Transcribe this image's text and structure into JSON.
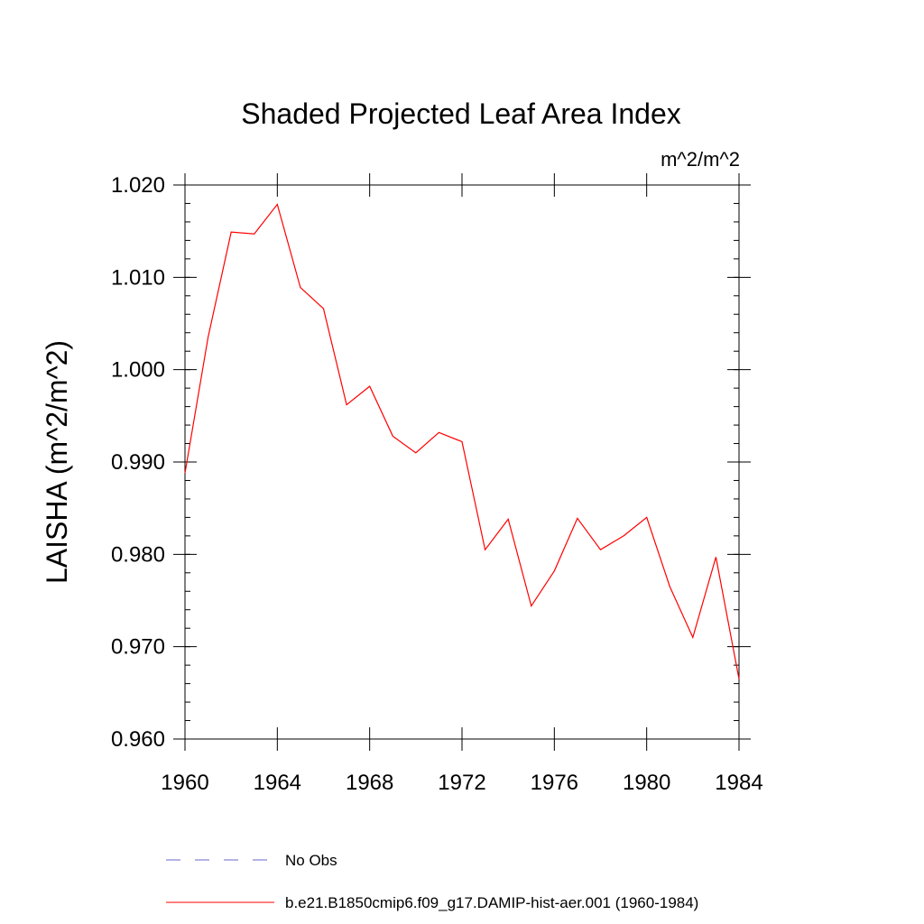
{
  "chart_data": {
    "type": "line",
    "title": "Shaded Projected Leaf Area Index",
    "units": "m^2/m^2",
    "ylabel": "LAISHA  (m^2/m^2)",
    "xlabel": "",
    "xlim": [
      1960,
      1984
    ],
    "ylim": [
      0.96,
      1.02
    ],
    "x_ticks": [
      1960,
      1964,
      1968,
      1972,
      1976,
      1980,
      1984
    ],
    "x_tick_labels": [
      "1960",
      "1964",
      "1968",
      "1972",
      "1976",
      "1980",
      "1984"
    ],
    "y_ticks": [
      0.96,
      0.97,
      0.98,
      0.99,
      1.0,
      1.01,
      1.02
    ],
    "y_tick_labels": [
      "0.960",
      "0.970",
      "0.980",
      "0.990",
      "1.000",
      "1.010",
      "1.020"
    ],
    "grid": false,
    "legend_position": "bottom",
    "series": [
      {
        "name": "b.e21.B1850cmip6.f09_g17.DAMIP-hist-aer.001 (1960-1984)",
        "color": "#ff0000",
        "style": "solid",
        "x": [
          1960,
          1961,
          1962,
          1963,
          1964,
          1965,
          1966,
          1967,
          1968,
          1969,
          1970,
          1971,
          1972,
          1973,
          1974,
          1975,
          1976,
          1977,
          1978,
          1979,
          1980,
          1981,
          1982,
          1983,
          1984
        ],
        "y": [
          0.9888,
          1.0035,
          1.0149,
          1.0147,
          1.0179,
          1.0089,
          1.0066,
          0.9962,
          0.9982,
          0.9928,
          0.991,
          0.9932,
          0.9922,
          0.9805,
          0.9838,
          0.9744,
          0.9782,
          0.9839,
          0.9805,
          0.982,
          0.984,
          0.9765,
          0.971,
          0.9797,
          0.9665
        ]
      }
    ],
    "legend": [
      {
        "label": "No Obs",
        "color": "#6a6ac8",
        "style": "dashed"
      },
      {
        "label": "b.e21.B1850cmip6.f09_g17.DAMIP-hist-aer.001 (1960-1984)",
        "color": "#ff0000",
        "style": "solid"
      }
    ]
  }
}
